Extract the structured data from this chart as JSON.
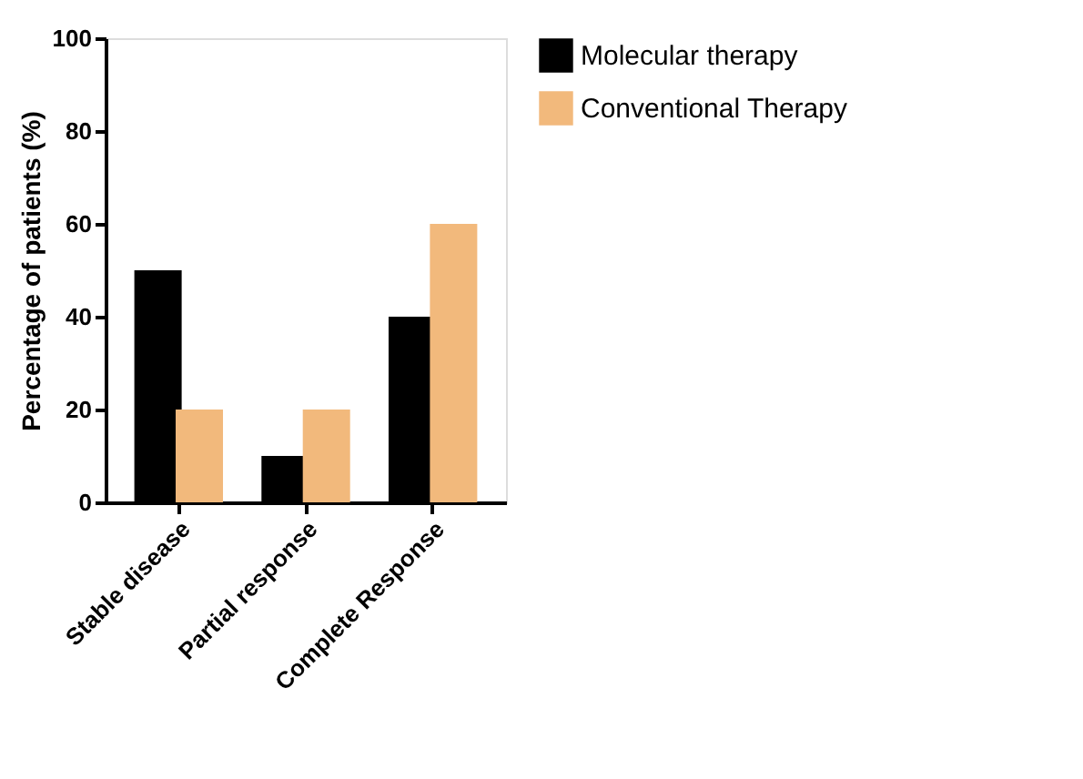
{
  "chart_data": {
    "type": "bar",
    "ylabel": "Percentage of patients (%)",
    "categories": [
      "Stable disease",
      "Partial response",
      "Complete Response"
    ],
    "series": [
      {
        "name": "Molecular therapy",
        "color": "#000000",
        "values": [
          50,
          10,
          40
        ]
      },
      {
        "name": "Conventional Therapy",
        "color": "#f2b97c",
        "values": [
          20,
          20,
          60
        ]
      }
    ],
    "ylim": [
      0,
      100
    ],
    "yticks": [
      0,
      20,
      40,
      60,
      80,
      100
    ],
    "grid": false,
    "legend": "top right"
  }
}
